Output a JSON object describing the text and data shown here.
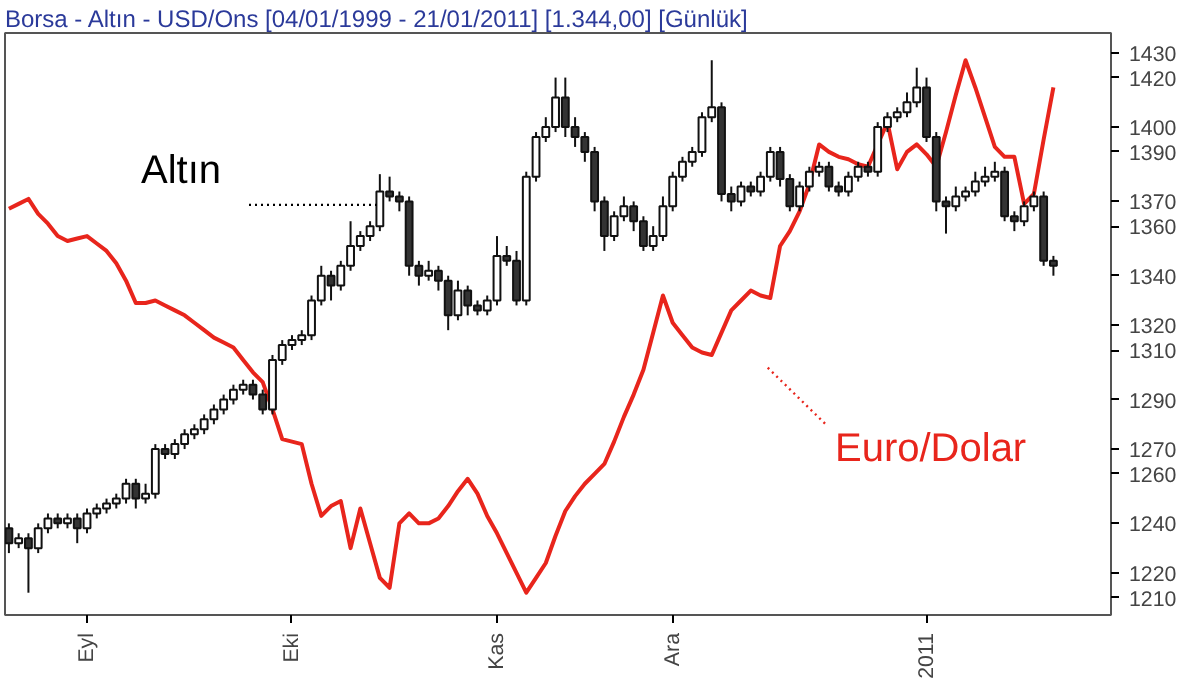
{
  "chart_data": {
    "type": "candlestick",
    "title": "Borsa - Altın - USD/Ons  [04/01/1999 - 21/01/2011]  [1.344,00]  [Günlük]",
    "categories": [
      null,
      null,
      null,
      null,
      null,
      null,
      null,
      null,
      "Eyl",
      null,
      null,
      null,
      null,
      null,
      null,
      null,
      null,
      null,
      null,
      null,
      null,
      null,
      null,
      null,
      null,
      null,
      null,
      null,
      null,
      "Eki",
      null,
      null,
      null,
      null,
      null,
      null,
      null,
      null,
      null,
      null,
      null,
      null,
      null,
      null,
      null,
      null,
      null,
      null,
      null,
      null,
      "Kas",
      null,
      null,
      null,
      null,
      null,
      null,
      null,
      null,
      null,
      null,
      null,
      null,
      null,
      null,
      null,
      null,
      null,
      "Ara",
      null,
      null,
      null,
      null,
      null,
      null,
      null,
      null,
      null,
      null,
      null,
      null,
      null,
      null,
      null,
      null,
      null,
      null,
      null,
      null,
      null,
      null,
      null,
      null,
      null,
      "2011",
      null,
      null,
      null,
      null,
      null,
      null,
      null,
      null,
      null,
      null,
      null,
      null,
      null
    ],
    "ylim": [
      1203,
      1438
    ],
    "yticks": [
      1210,
      1220,
      1240,
      1260,
      1270,
      1290,
      1310,
      1320,
      1340,
      1360,
      1370,
      1390,
      1400,
      1420,
      1430
    ],
    "grid": false,
    "series": [
      {
        "name": "Altın",
        "type": "candlestick",
        "ohlc": [
          [
            1238,
            1240,
            1228,
            1232
          ],
          [
            1232,
            1236,
            1230,
            1234
          ],
          [
            1234,
            1236,
            1212,
            1230
          ],
          [
            1230,
            1240,
            1228,
            1238
          ],
          [
            1238,
            1244,
            1236,
            1242
          ],
          [
            1242,
            1244,
            1238,
            1240
          ],
          [
            1240,
            1244,
            1238,
            1242
          ],
          [
            1242,
            1244,
            1232,
            1238
          ],
          [
            1238,
            1246,
            1236,
            1244
          ],
          [
            1244,
            1248,
            1242,
            1246
          ],
          [
            1246,
            1250,
            1244,
            1248
          ],
          [
            1248,
            1252,
            1246,
            1250
          ],
          [
            1250,
            1258,
            1248,
            1256
          ],
          [
            1256,
            1258,
            1246,
            1250
          ],
          [
            1250,
            1256,
            1248,
            1252
          ],
          [
            1252,
            1272,
            1250,
            1270
          ],
          [
            1270,
            1272,
            1266,
            1268
          ],
          [
            1268,
            1274,
            1266,
            1272
          ],
          [
            1272,
            1278,
            1270,
            1276
          ],
          [
            1276,
            1280,
            1274,
            1278
          ],
          [
            1278,
            1284,
            1276,
            1282
          ],
          [
            1282,
            1288,
            1280,
            1286
          ],
          [
            1286,
            1292,
            1284,
            1290
          ],
          [
            1290,
            1296,
            1288,
            1294
          ],
          [
            1294,
            1298,
            1292,
            1296
          ],
          [
            1296,
            1298,
            1290,
            1292
          ],
          [
            1292,
            1294,
            1284,
            1286
          ],
          [
            1286,
            1308,
            1284,
            1306
          ],
          [
            1306,
            1314,
            1304,
            1312
          ],
          [
            1312,
            1316,
            1310,
            1314
          ],
          [
            1314,
            1318,
            1312,
            1316
          ],
          [
            1316,
            1332,
            1314,
            1330
          ],
          [
            1330,
            1344,
            1328,
            1340
          ],
          [
            1340,
            1342,
            1330,
            1336
          ],
          [
            1336,
            1346,
            1334,
            1344
          ],
          [
            1344,
            1362,
            1342,
            1352
          ],
          [
            1352,
            1358,
            1350,
            1356
          ],
          [
            1356,
            1362,
            1354,
            1360
          ],
          [
            1360,
            1381,
            1358,
            1374
          ],
          [
            1374,
            1380,
            1370,
            1372
          ],
          [
            1372,
            1374,
            1366,
            1370
          ],
          [
            1370,
            1372,
            1340,
            1344
          ],
          [
            1344,
            1346,
            1336,
            1340
          ],
          [
            1340,
            1346,
            1338,
            1342
          ],
          [
            1342,
            1344,
            1334,
            1338
          ],
          [
            1338,
            1340,
            1318,
            1324
          ],
          [
            1324,
            1338,
            1322,
            1334
          ],
          [
            1334,
            1336,
            1324,
            1328
          ],
          [
            1328,
            1330,
            1324,
            1326
          ],
          [
            1326,
            1332,
            1324,
            1330
          ],
          [
            1330,
            1356,
            1328,
            1348
          ],
          [
            1348,
            1352,
            1344,
            1346
          ],
          [
            1346,
            1350,
            1328,
            1330
          ],
          [
            1330,
            1382,
            1328,
            1380
          ],
          [
            1380,
            1398,
            1378,
            1396
          ],
          [
            1396,
            1404,
            1394,
            1400
          ],
          [
            1400,
            1420,
            1398,
            1412
          ],
          [
            1412,
            1420,
            1396,
            1400
          ],
          [
            1400,
            1404,
            1392,
            1396
          ],
          [
            1396,
            1398,
            1386,
            1390
          ],
          [
            1390,
            1392,
            1366,
            1370
          ],
          [
            1370,
            1372,
            1350,
            1356
          ],
          [
            1356,
            1366,
            1354,
            1364
          ],
          [
            1364,
            1372,
            1362,
            1368
          ],
          [
            1368,
            1370,
            1358,
            1362
          ],
          [
            1362,
            1364,
            1350,
            1352
          ],
          [
            1352,
            1360,
            1350,
            1356
          ],
          [
            1356,
            1372,
            1354,
            1368
          ],
          [
            1368,
            1382,
            1366,
            1380
          ],
          [
            1380,
            1388,
            1378,
            1386
          ],
          [
            1386,
            1392,
            1384,
            1390
          ],
          [
            1390,
            1406,
            1388,
            1404
          ],
          [
            1404,
            1427,
            1402,
            1408
          ],
          [
            1408,
            1410,
            1370,
            1373
          ],
          [
            1373,
            1376,
            1366,
            1370
          ],
          [
            1370,
            1378,
            1368,
            1376
          ],
          [
            1376,
            1378,
            1372,
            1374
          ],
          [
            1374,
            1382,
            1372,
            1380
          ],
          [
            1380,
            1392,
            1378,
            1390
          ],
          [
            1390,
            1392,
            1376,
            1379
          ],
          [
            1379,
            1381,
            1366,
            1368
          ],
          [
            1368,
            1378,
            1366,
            1376
          ],
          [
            1376,
            1384,
            1374,
            1382
          ],
          [
            1382,
            1386,
            1380,
            1384
          ],
          [
            1384,
            1386,
            1374,
            1376
          ],
          [
            1376,
            1378,
            1372,
            1374
          ],
          [
            1374,
            1382,
            1372,
            1380
          ],
          [
            1380,
            1386,
            1378,
            1384
          ],
          [
            1384,
            1386,
            1380,
            1382
          ],
          [
            1382,
            1402,
            1380,
            1400
          ],
          [
            1400,
            1406,
            1398,
            1404
          ],
          [
            1404,
            1408,
            1402,
            1406
          ],
          [
            1406,
            1414,
            1404,
            1410
          ],
          [
            1410,
            1424,
            1408,
            1416
          ],
          [
            1416,
            1420,
            1394,
            1396
          ],
          [
            1396,
            1398,
            1366,
            1370
          ],
          [
            1370,
            1372,
            1357,
            1368
          ],
          [
            1368,
            1376,
            1366,
            1372
          ],
          [
            1372,
            1376,
            1370,
            1374
          ],
          [
            1374,
            1382,
            1372,
            1378
          ],
          [
            1378,
            1384,
            1376,
            1380
          ],
          [
            1380,
            1386,
            1378,
            1382
          ],
          [
            1382,
            1384,
            1362,
            1364
          ],
          [
            1364,
            1366,
            1358,
            1362
          ],
          [
            1362,
            1370,
            1360,
            1368
          ],
          [
            1368,
            1374,
            1366,
            1372
          ],
          [
            1372,
            1374,
            1344,
            1346
          ],
          [
            1346,
            1348,
            1340,
            1344
          ]
        ]
      },
      {
        "name": "Euro/Dolar",
        "type": "line",
        "color": "#e8251c",
        "values": [
          1367,
          1369,
          1371,
          1365,
          1361,
          1356,
          1354,
          1355,
          1356,
          1353,
          1350,
          1345,
          1338,
          1329,
          1329,
          1330,
          1328,
          1326,
          1324,
          1321,
          1318,
          1315,
          1313,
          1311,
          1306,
          1301,
          1297,
          1286,
          1274,
          1273,
          1272,
          1256,
          1243,
          1247,
          1249,
          1230,
          1246,
          1232,
          1218,
          1214,
          1240,
          1244,
          1240,
          1240,
          1242,
          1247,
          1253,
          1258,
          1252,
          1243,
          1236,
          1228,
          1220,
          1212,
          1218,
          1224,
          1235,
          1245,
          1251,
          1256,
          1260,
          1264,
          1273,
          1283,
          1292,
          1302,
          1317,
          1332,
          1321,
          1316,
          1311,
          1309,
          1308,
          1317,
          1326,
          1330,
          1334,
          1332,
          1331,
          1352,
          1358,
          1366,
          1377,
          1393,
          1390,
          1388,
          1387,
          1385,
          1384,
          1393,
          1402,
          1383,
          1390,
          1393,
          1389,
          1384,
          1398,
          1413,
          1427,
          1416,
          1404,
          1392,
          1388,
          1388,
          1369,
          1373,
          1395,
          1416
        ]
      }
    ]
  }
}
